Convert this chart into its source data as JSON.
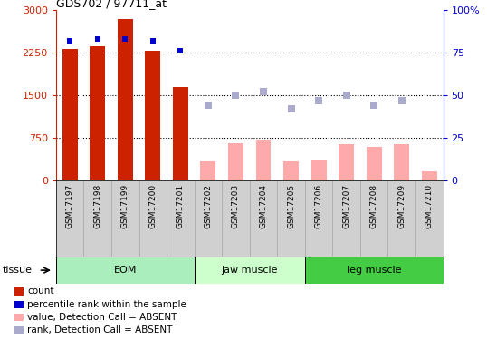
{
  "title": "GDS702 / 97711_at",
  "samples": [
    "GSM17197",
    "GSM17198",
    "GSM17199",
    "GSM17200",
    "GSM17201",
    "GSM17202",
    "GSM17203",
    "GSM17204",
    "GSM17205",
    "GSM17206",
    "GSM17207",
    "GSM17208",
    "GSM17209",
    "GSM17210"
  ],
  "bar_values": [
    2320,
    2360,
    2850,
    2280,
    1650,
    null,
    null,
    null,
    null,
    null,
    null,
    null,
    null,
    null
  ],
  "bar_absent_values": [
    null,
    null,
    null,
    null,
    null,
    330,
    660,
    710,
    330,
    370,
    640,
    590,
    640,
    160
  ],
  "rank_present": [
    82,
    83,
    83,
    82,
    76,
    null,
    null,
    null,
    null,
    null,
    null,
    null,
    null,
    null
  ],
  "rank_absent": [
    null,
    null,
    null,
    null,
    null,
    44,
    50,
    52,
    42,
    47,
    50,
    44,
    47,
    null
  ],
  "bar_color_present": "#cc2200",
  "bar_color_absent": "#ffaaaa",
  "dot_color_present": "#0000cc",
  "dot_color_absent": "#aaaacc",
  "ylim_left": [
    0,
    3000
  ],
  "ylim_right": [
    0,
    100
  ],
  "yticks_left": [
    0,
    750,
    1500,
    2250,
    3000
  ],
  "yticks_right": [
    0,
    25,
    50,
    75,
    100
  ],
  "ytick_labels_right": [
    "0",
    "25",
    "50",
    "75",
    "100%"
  ],
  "groups": [
    {
      "label": "EOM",
      "start": 0,
      "end": 5,
      "color": "#bbf0bb"
    },
    {
      "label": "jaw muscle",
      "start": 5,
      "end": 9,
      "color": "#ccffcc"
    },
    {
      "label": "leg muscle",
      "start": 9,
      "end": 14,
      "color": "#55dd55"
    }
  ],
  "legend_items": [
    {
      "label": "count",
      "color": "#cc2200"
    },
    {
      "label": "percentile rank within the sample",
      "color": "#0000cc"
    },
    {
      "label": "value, Detection Call = ABSENT",
      "color": "#ffaaaa"
    },
    {
      "label": "rank, Detection Call = ABSENT",
      "color": "#aaaacc"
    }
  ],
  "tissue_label": "tissue",
  "bar_width": 0.55,
  "xtick_bg": "#d0d0d0",
  "group_bg_eom": "#aaeebb",
  "group_bg_jaw": "#ccffcc",
  "group_bg_leg": "#44cc44"
}
